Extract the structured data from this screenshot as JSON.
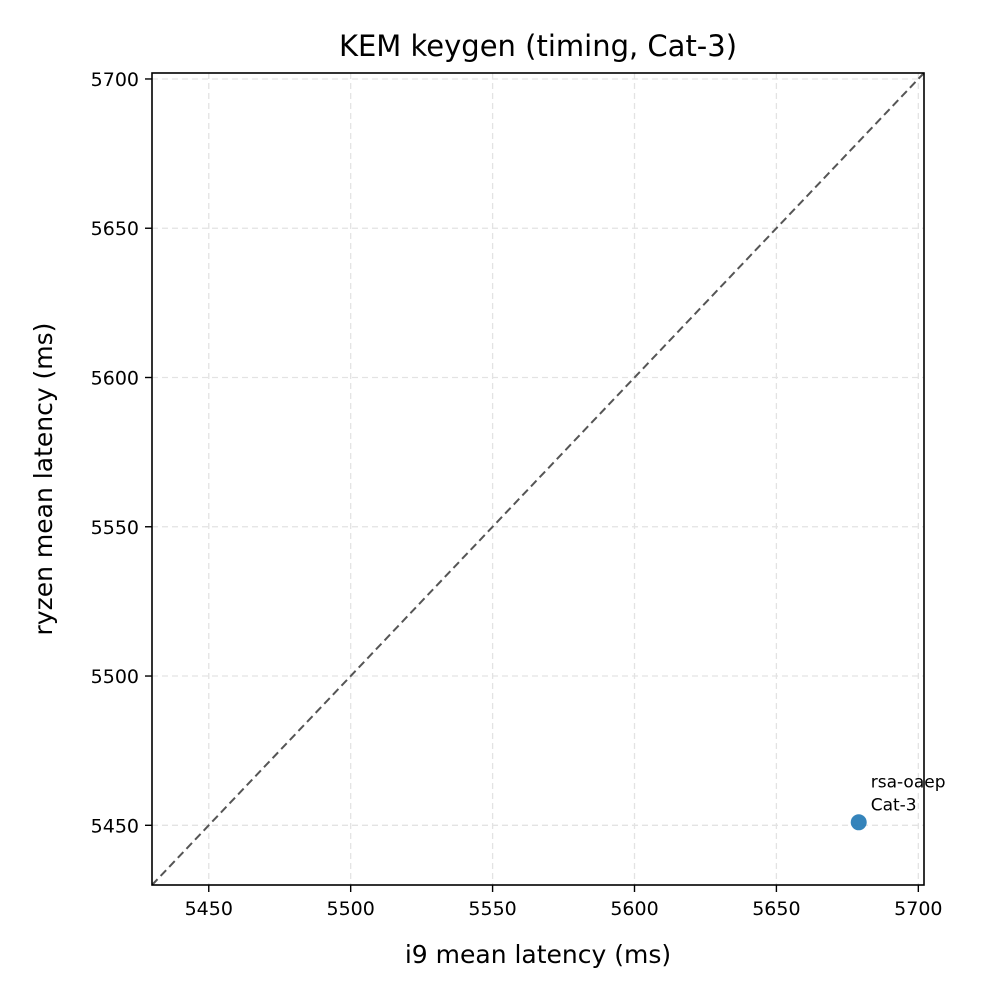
{
  "chart_data": {
    "type": "scatter",
    "title": "KEM keygen (timing, Cat-3)",
    "xlabel": "i9 mean latency (ms)",
    "ylabel": "ryzen mean latency (ms)",
    "xlim": [
      5430,
      5702
    ],
    "ylim": [
      5430,
      5702
    ],
    "xticks": [
      5450,
      5500,
      5550,
      5600,
      5650,
      5700
    ],
    "yticks": [
      5450,
      5500,
      5550,
      5600,
      5650,
      5700
    ],
    "grid": true,
    "reference_line": "y = x",
    "points": [
      {
        "x": 5679,
        "y": 5451,
        "label_lines": [
          "rsa-oaep",
          "Cat-3"
        ]
      }
    ],
    "colors": {
      "point": "#1f77b4",
      "reference_line": "#555555",
      "grid": "#e3e3e3"
    }
  }
}
